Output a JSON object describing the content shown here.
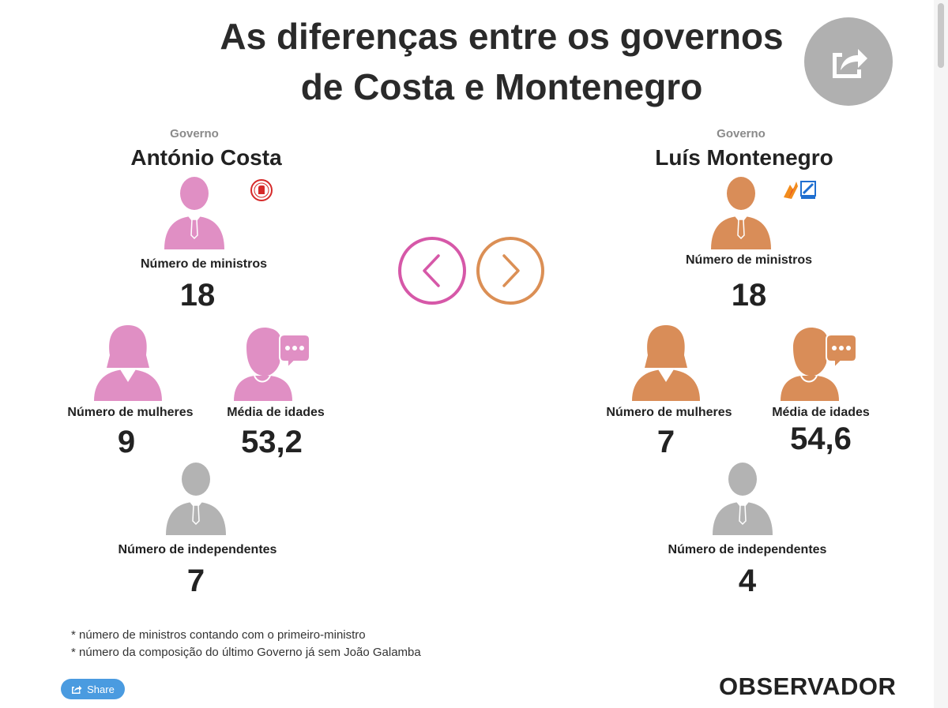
{
  "title_line1": "As diferenças entre os governos",
  "title_line2": "de Costa e Montenegro",
  "nav": {
    "prev_icon": "chevron-left-icon",
    "next_icon": "chevron-right-icon"
  },
  "colors": {
    "costa": "#e08fc4",
    "montenegro": "#d98d58",
    "neutral": "#b3b3b3",
    "prev_ring": "#d658a8",
    "next_ring": "#db8f55"
  },
  "left": {
    "gov_label": "Governo",
    "name": "António Costa",
    "ministers_label": "Número de ministros",
    "ministers": "18",
    "women_label": "Número de mulheres",
    "women": "9",
    "age_label": "Média de idades",
    "age": "53,2",
    "independents_label": "Número de independentes",
    "independents": "7"
  },
  "right": {
    "gov_label": "Governo",
    "name": "Luís Montenegro",
    "ministers_label": "Número de ministros",
    "ministers": "18",
    "women_label": "Número de mulheres",
    "women": "7",
    "age_label": "Média de idades",
    "age": "54,6",
    "independents_label": "Número de independentes",
    "independents": "4"
  },
  "footnotes": [
    "* número de ministros contando com o primeiro-ministro",
    "* número da composição do último Governo já sem João Galamba"
  ],
  "share_label": "Share",
  "brand": "OBSERVADOR"
}
